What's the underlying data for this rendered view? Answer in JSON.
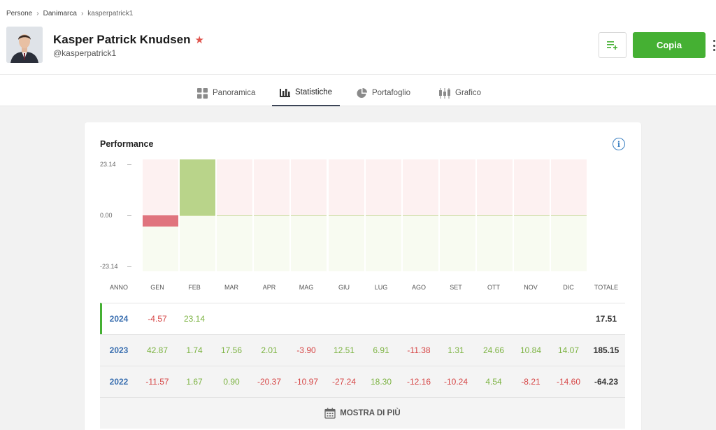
{
  "breadcrumb": [
    "Persone",
    "Danimarca",
    "kasperpatrick1"
  ],
  "profile": {
    "name": "Kasper Patrick Knudsen",
    "handle": "@kasperpatrick1"
  },
  "actions": {
    "copy_label": "Copia"
  },
  "tabs": [
    {
      "label": "Panoramica",
      "icon": "grid-icon"
    },
    {
      "label": "Statistiche",
      "icon": "bar-chart-icon"
    },
    {
      "label": "Portafoglio",
      "icon": "pie-chart-icon"
    },
    {
      "label": "Grafico",
      "icon": "candlestick-icon"
    }
  ],
  "performance": {
    "title": "Performance",
    "y_labels": [
      "23.14",
      "0.00",
      "-23.14"
    ],
    "headers": [
      "ANNO",
      "GEN",
      "FEB",
      "MAR",
      "APR",
      "MAG",
      "GIU",
      "LUG",
      "AGO",
      "SET",
      "OTT",
      "NOV",
      "DIC",
      "TOTALE"
    ],
    "rows": [
      {
        "year": "2024",
        "months": [
          "-4.57",
          "23.14",
          "",
          "",
          "",
          "",
          "",
          "",
          "",
          "",
          "",
          ""
        ],
        "total": "17.51"
      },
      {
        "year": "2023",
        "months": [
          "42.87",
          "1.74",
          "17.56",
          "2.01",
          "-3.90",
          "12.51",
          "6.91",
          "-11.38",
          "1.31",
          "24.66",
          "10.84",
          "14.07"
        ],
        "total": "185.15"
      },
      {
        "year": "2022",
        "months": [
          "-11.57",
          "1.67",
          "0.90",
          "-20.37",
          "-10.97",
          "-27.24",
          "18.30",
          "-12.16",
          "-10.24",
          "4.54",
          "-8.21",
          "-14.60"
        ],
        "total": "-64.23"
      }
    ],
    "more_label": "MOSTRA DI PIÙ"
  },
  "chart_data": {
    "type": "bar",
    "title": "Performance",
    "categories": [
      "GEN",
      "FEB",
      "MAR",
      "APR",
      "MAG",
      "GIU",
      "LUG",
      "AGO",
      "SET",
      "OTT",
      "NOV",
      "DIC"
    ],
    "values": [
      -4.57,
      23.14,
      null,
      null,
      null,
      null,
      null,
      null,
      null,
      null,
      null,
      null
    ],
    "ylim": [
      -23.14,
      23.14
    ],
    "colors": {
      "positive": "#b9d48a",
      "negative": "#e0747e"
    }
  }
}
